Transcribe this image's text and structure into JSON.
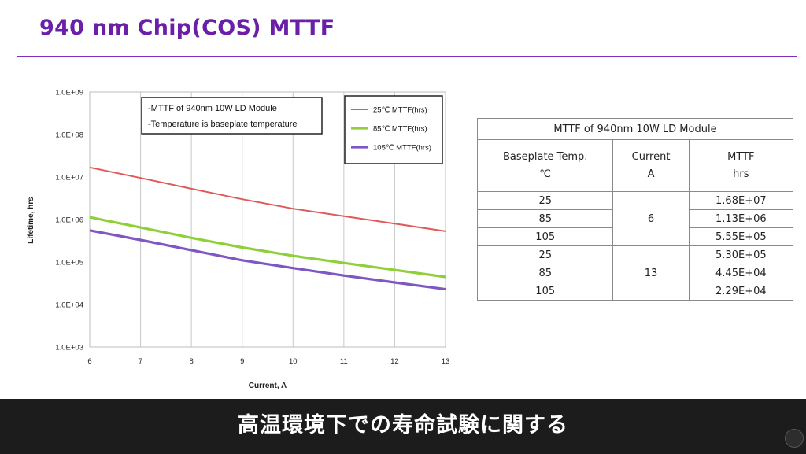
{
  "page_title": "940 nm Chip(COS) MTTF",
  "subtitle": "高温環境下での寿命試験に関する",
  "colors": {
    "title": "#6a1fa8",
    "rule": "#7a2fc0",
    "s25": "#e05a5a",
    "s85": "#8fcf3a",
    "s105": "#7e57c2"
  },
  "chart_data": {
    "type": "line",
    "xlabel": "Current, A",
    "ylabel": "Lifetime, hrs",
    "y_scale": "log",
    "xlim": [
      6,
      13
    ],
    "ylim": [
      1000,
      1000000000
    ],
    "x_ticks": [
      "6",
      "7",
      "8",
      "9",
      "10",
      "11",
      "12",
      "13"
    ],
    "y_ticks": [
      "1.0E+03",
      "1.0E+04",
      "1.0E+05",
      "1.0E+06",
      "1.0E+07",
      "1.0E+08",
      "1.0E+09"
    ],
    "grid": "vertical",
    "legend_position": "top-right",
    "notes": [
      "-MTTF of 940nm 10W LD Module",
      "-Temperature is baseplate temperature"
    ],
    "series": [
      {
        "name": "25℃ MTTF(hrs)",
        "color": "#e05a5a",
        "x": [
          6,
          7,
          8,
          9,
          10,
          11,
          12,
          13
        ],
        "y": [
          16800000,
          9500000,
          5300000,
          3000000,
          1800000,
          1200000,
          800000,
          530000
        ]
      },
      {
        "name": "85℃ MTTF(hrs)",
        "color": "#8fcf3a",
        "x": [
          6,
          7,
          8,
          9,
          10,
          11,
          12,
          13
        ],
        "y": [
          1130000,
          650000,
          370000,
          220000,
          140000,
          95000,
          65000,
          44500
        ]
      },
      {
        "name": "105℃ MTTF(hrs)",
        "color": "#7e57c2",
        "x": [
          6,
          7,
          8,
          9,
          10,
          11,
          12,
          13
        ],
        "y": [
          555000,
          330000,
          190000,
          110000,
          72000,
          48000,
          33000,
          22900
        ]
      }
    ]
  },
  "table": {
    "caption": "MTTF of 940nm 10W LD Module",
    "headers": {
      "temp": "Baseplate Temp.",
      "temp_unit": "℃",
      "current": "Current",
      "current_unit": "A",
      "mttf": "MTTF",
      "mttf_unit": "hrs"
    },
    "groups": [
      {
        "current": "6",
        "rows": [
          {
            "temp": "25",
            "mttf": "1.68E+07"
          },
          {
            "temp": "85",
            "mttf": "1.13E+06"
          },
          {
            "temp": "105",
            "mttf": "5.55E+05"
          }
        ]
      },
      {
        "current": "13",
        "rows": [
          {
            "temp": "25",
            "mttf": "5.30E+05"
          },
          {
            "temp": "85",
            "mttf": "4.45E+04"
          },
          {
            "temp": "105",
            "mttf": "2.29E+04"
          }
        ]
      }
    ]
  }
}
